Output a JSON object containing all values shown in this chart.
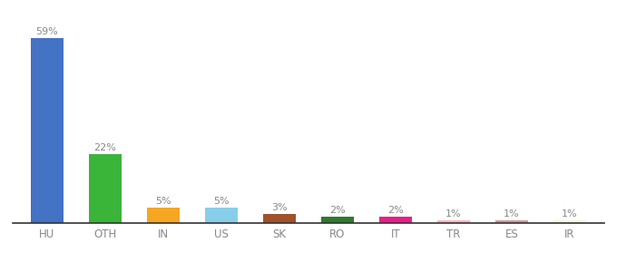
{
  "categories": [
    "HU",
    "OTH",
    "IN",
    "US",
    "SK",
    "RO",
    "IT",
    "TR",
    "ES",
    "IR"
  ],
  "values": [
    59,
    22,
    5,
    5,
    3,
    2,
    2,
    1,
    1,
    1
  ],
  "bar_colors": [
    "#4472c4",
    "#3ab53a",
    "#f5a623",
    "#87ceeb",
    "#a0522d",
    "#2d7a2d",
    "#e91e8c",
    "#ffb6c1",
    "#cd9b9b",
    "#f5f5dc"
  ],
  "background_color": "#ffffff",
  "ylim": [
    0,
    65
  ],
  "bar_width": 0.55,
  "label_color": "#888888",
  "tick_color": "#888888",
  "label_fontsize": 8,
  "tick_fontsize": 8.5
}
